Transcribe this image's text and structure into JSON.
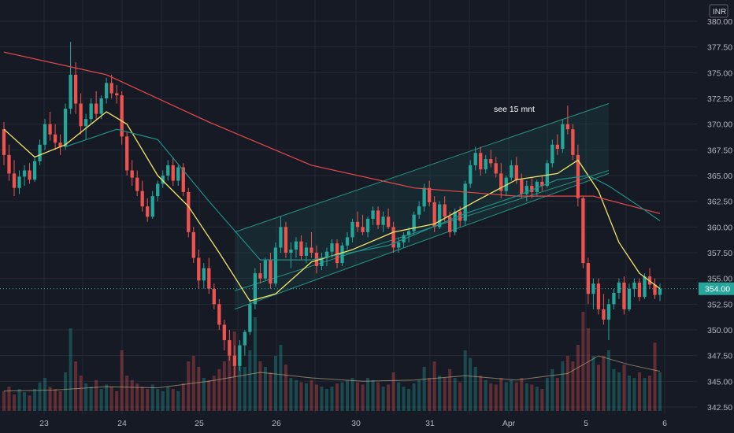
{
  "chart_data": {
    "type": "candlestick",
    "currency": "INR",
    "y_range": [
      342.5,
      380.0
    ],
    "y_ticks": [
      "380.00",
      "377.50",
      "375.00",
      "372.50",
      "370.00",
      "367.50",
      "365.00",
      "362.50",
      "360.00",
      "357.50",
      "355.00",
      "352.50",
      "350.00",
      "347.50",
      "345.00",
      "342.50"
    ],
    "x_ticks": [
      "23",
      "24",
      "25",
      "26",
      "30",
      "31",
      "Apr",
      "5",
      "6"
    ],
    "current_price": "354.00",
    "annotation": "see 15 mnt",
    "colors": {
      "background": "#161a25",
      "grid": "#242835",
      "up": "#26a69a",
      "down": "#ef5350",
      "ma_fast": "#f5e66b",
      "ma_slow": "#e84a4a",
      "ma_mid": "#1f8f87",
      "channel": "#2aa592",
      "price_line": "#26a69a"
    },
    "candles": [
      [
        369.5,
        370.2,
        366.0,
        367.0
      ],
      [
        367.0,
        368.0,
        364.5,
        365.2
      ],
      [
        365.2,
        366.5,
        363.0,
        363.8
      ],
      [
        363.8,
        365.5,
        363.2,
        364.9
      ],
      [
        364.9,
        366.0,
        364.0,
        365.5
      ],
      [
        365.5,
        366.2,
        364.2,
        364.6
      ],
      [
        364.6,
        366.8,
        364.4,
        366.4
      ],
      [
        366.4,
        368.5,
        366.0,
        368.0
      ],
      [
        368.0,
        370.5,
        367.5,
        370.0
      ],
      [
        370.0,
        371.2,
        368.4,
        369.0
      ],
      [
        369.0,
        370.0,
        367.5,
        368.2
      ],
      [
        368.2,
        369.0,
        367.0,
        367.8
      ],
      [
        367.8,
        372.0,
        367.5,
        371.5
      ],
      [
        371.5,
        378.0,
        371.0,
        374.8
      ],
      [
        374.8,
        376.0,
        371.0,
        372.0
      ],
      [
        372.0,
        373.0,
        369.0,
        369.8
      ],
      [
        369.8,
        371.0,
        368.5,
        370.5
      ],
      [
        370.5,
        372.5,
        370.0,
        372.0
      ],
      [
        372.0,
        373.2,
        370.5,
        371.0
      ],
      [
        371.0,
        372.8,
        370.5,
        372.5
      ],
      [
        372.5,
        374.5,
        372.0,
        374.0
      ],
      [
        374.0,
        374.8,
        372.5,
        373.0
      ],
      [
        373.0,
        373.8,
        372.0,
        372.8
      ],
      [
        372.8,
        373.2,
        368.0,
        368.8
      ],
      [
        368.8,
        369.2,
        365.0,
        365.5
      ],
      [
        365.5,
        366.5,
        364.0,
        364.8
      ],
      [
        364.8,
        365.5,
        363.0,
        363.5
      ],
      [
        363.5,
        364.5,
        361.5,
        362.0
      ],
      [
        362.0,
        362.8,
        360.5,
        361.0
      ],
      [
        361.0,
        363.5,
        360.8,
        363.0
      ],
      [
        363.0,
        364.5,
        362.5,
        364.2
      ],
      [
        364.2,
        365.5,
        363.8,
        365.0
      ],
      [
        365.0,
        366.5,
        364.5,
        366.0
      ],
      [
        366.0,
        366.8,
        364.0,
        364.5
      ],
      [
        364.5,
        366.0,
        364.0,
        365.8
      ],
      [
        365.8,
        366.2,
        363.0,
        363.4
      ],
      [
        363.4,
        363.8,
        359.0,
        359.5
      ],
      [
        359.5,
        360.0,
        356.5,
        357.0
      ],
      [
        357.0,
        357.8,
        354.0,
        354.8
      ],
      [
        354.8,
        356.5,
        354.0,
        356.0
      ],
      [
        356.0,
        357.0,
        353.5,
        354.0
      ],
      [
        354.0,
        354.5,
        352.0,
        352.5
      ],
      [
        352.5,
        353.0,
        350.0,
        350.5
      ],
      [
        350.5,
        351.0,
        348.0,
        349.0
      ],
      [
        349.0,
        350.0,
        347.0,
        347.5
      ],
      [
        347.5,
        348.5,
        345.5,
        346.5
      ],
      [
        346.5,
        349.0,
        346.0,
        348.5
      ],
      [
        348.5,
        350.0,
        347.5,
        349.8
      ],
      [
        349.8,
        353.0,
        349.5,
        352.5
      ],
      [
        352.5,
        356.0,
        352.0,
        355.5
      ],
      [
        355.5,
        356.5,
        354.5,
        355.0
      ],
      [
        355.0,
        357.0,
        354.8,
        356.8
      ],
      [
        356.8,
        357.5,
        354.0,
        354.5
      ],
      [
        354.5,
        358.5,
        354.2,
        358.0
      ],
      [
        358.0,
        361.0,
        357.5,
        360.0
      ],
      [
        360.0,
        360.5,
        357.0,
        357.5
      ],
      [
        357.5,
        358.5,
        356.0,
        357.8
      ],
      [
        357.8,
        359.0,
        357.0,
        358.6
      ],
      [
        358.6,
        359.2,
        356.8,
        357.2
      ],
      [
        357.2,
        358.5,
        356.5,
        358.0
      ],
      [
        358.0,
        359.5,
        357.0,
        357.5
      ],
      [
        357.5,
        358.2,
        355.5,
        356.2
      ],
      [
        356.2,
        357.5,
        355.8,
        357.0
      ],
      [
        357.0,
        358.0,
        356.2,
        357.6
      ],
      [
        357.6,
        358.8,
        357.0,
        358.4
      ],
      [
        358.4,
        358.8,
        356.0,
        356.5
      ],
      [
        356.5,
        358.5,
        356.2,
        358.2
      ],
      [
        358.2,
        359.5,
        357.8,
        359.0
      ],
      [
        359.0,
        360.8,
        358.5,
        360.5
      ],
      [
        360.5,
        361.5,
        359.5,
        360.0
      ],
      [
        360.0,
        361.2,
        359.2,
        359.5
      ],
      [
        359.5,
        361.0,
        359.0,
        360.8
      ],
      [
        360.8,
        362.0,
        360.2,
        361.6
      ],
      [
        361.6,
        362.0,
        359.8,
        360.2
      ],
      [
        360.2,
        361.5,
        359.5,
        361.0
      ],
      [
        361.0,
        361.8,
        359.8,
        360.0
      ],
      [
        360.0,
        360.5,
        357.5,
        358.0
      ],
      [
        358.0,
        359.0,
        357.5,
        358.5
      ],
      [
        358.5,
        359.5,
        358.0,
        359.2
      ],
      [
        359.2,
        360.0,
        358.5,
        359.6
      ],
      [
        359.6,
        361.5,
        359.2,
        361.2
      ],
      [
        361.2,
        362.5,
        360.8,
        362.0
      ],
      [
        362.0,
        364.2,
        361.5,
        363.8
      ],
      [
        363.8,
        364.5,
        362.0,
        362.4
      ],
      [
        362.4,
        363.0,
        359.5,
        360.0
      ],
      [
        360.0,
        362.5,
        359.8,
        362.2
      ],
      [
        362.2,
        363.0,
        360.5,
        361.0
      ],
      [
        361.0,
        361.5,
        359.0,
        359.5
      ],
      [
        359.5,
        361.8,
        359.2,
        361.5
      ],
      [
        361.5,
        362.0,
        360.0,
        360.6
      ],
      [
        360.6,
        364.5,
        360.2,
        364.2
      ],
      [
        364.2,
        366.5,
        363.8,
        366.0
      ],
      [
        366.0,
        367.8,
        365.5,
        367.2
      ],
      [
        367.2,
        367.8,
        365.0,
        365.6
      ],
      [
        365.6,
        367.0,
        365.2,
        366.6
      ],
      [
        366.6,
        367.5,
        365.8,
        366.2
      ],
      [
        366.2,
        366.8,
        364.8,
        365.2
      ],
      [
        365.2,
        366.2,
        362.8,
        363.5
      ],
      [
        363.5,
        365.0,
        363.0,
        364.8
      ],
      [
        364.8,
        366.5,
        364.5,
        366.0
      ],
      [
        366.0,
        366.8,
        364.2,
        364.6
      ],
      [
        364.6,
        365.2,
        362.8,
        363.2
      ],
      [
        363.2,
        364.5,
        362.5,
        364.0
      ],
      [
        364.0,
        364.8,
        362.8,
        363.4
      ],
      [
        363.4,
        364.6,
        363.0,
        364.4
      ],
      [
        364.4,
        365.0,
        363.5,
        364.0
      ],
      [
        364.0,
        366.5,
        363.8,
        366.2
      ],
      [
        366.2,
        368.5,
        365.8,
        368.0
      ],
      [
        368.0,
        369.0,
        367.0,
        367.6
      ],
      [
        367.6,
        370.5,
        367.2,
        370.0
      ],
      [
        370.0,
        371.8,
        369.0,
        369.5
      ],
      [
        369.5,
        370.0,
        366.5,
        367.0
      ],
      [
        367.0,
        368.0,
        362.0,
        362.8
      ],
      [
        362.8,
        363.0,
        356.0,
        356.5
      ],
      [
        356.5,
        357.0,
        352.5,
        353.5
      ],
      [
        353.5,
        355.0,
        352.0,
        354.5
      ],
      [
        354.5,
        355.0,
        351.5,
        352.0
      ],
      [
        352.0,
        353.5,
        350.5,
        351.0
      ],
      [
        351.0,
        353.0,
        349.0,
        352.5
      ],
      [
        352.5,
        354.0,
        352.0,
        353.6
      ],
      [
        353.6,
        355.0,
        353.0,
        354.6
      ],
      [
        354.6,
        355.2,
        351.5,
        352.0
      ],
      [
        352.0,
        354.5,
        351.8,
        354.0
      ],
      [
        354.0,
        355.0,
        353.2,
        354.6
      ],
      [
        354.6,
        355.0,
        352.8,
        353.2
      ],
      [
        353.2,
        355.5,
        353.0,
        355.2
      ],
      [
        355.2,
        356.0,
        354.0,
        354.4
      ],
      [
        354.4,
        355.0,
        353.0,
        353.4
      ],
      [
        353.4,
        354.5,
        352.8,
        354.0
      ]
    ],
    "moving_averages": [
      {
        "name": "",
        "color": "#f5e66b",
        "points": [
          [
            0,
            369.5
          ],
          [
            6,
            366.8
          ],
          [
            12,
            368.0
          ],
          [
            20,
            371.2
          ],
          [
            24,
            370.0
          ],
          [
            30,
            365.0
          ],
          [
            36,
            362.0
          ],
          [
            42,
            357.5
          ],
          [
            48,
            352.8
          ],
          [
            53,
            353.5
          ],
          [
            60,
            356.6
          ],
          [
            68,
            357.8
          ],
          [
            76,
            359.5
          ],
          [
            84,
            360.3
          ],
          [
            92,
            362.5
          ],
          [
            100,
            364.6
          ],
          [
            108,
            365.2
          ],
          [
            112,
            366.5
          ],
          [
            116,
            363.5
          ],
          [
            120,
            358.5
          ],
          [
            124,
            355.5
          ],
          [
            128,
            354.0
          ]
        ]
      },
      {
        "name": "",
        "color": "#e84a4a",
        "points": [
          [
            0,
            377.0
          ],
          [
            20,
            374.8
          ],
          [
            40,
            370.2
          ],
          [
            60,
            366.0
          ],
          [
            80,
            363.8
          ],
          [
            100,
            363.0
          ],
          [
            115,
            363.0
          ],
          [
            128,
            361.3
          ]
        ]
      },
      {
        "name": "",
        "color": "#1f8f87",
        "points": [
          [
            12,
            367.8
          ],
          [
            22,
            369.5
          ],
          [
            30,
            368.5
          ],
          [
            40,
            362.5
          ],
          [
            50,
            356.8
          ],
          [
            60,
            356.8
          ],
          [
            75,
            358.2
          ],
          [
            90,
            361.3
          ],
          [
            100,
            363.0
          ],
          [
            108,
            364.6
          ],
          [
            114,
            365.0
          ],
          [
            118,
            364.0
          ],
          [
            124,
            362.0
          ],
          [
            128,
            360.6
          ]
        ]
      }
    ],
    "volume": [
      0.18,
      0.22,
      0.15,
      0.2,
      0.17,
      0.14,
      0.2,
      0.26,
      0.3,
      0.22,
      0.2,
      0.18,
      0.35,
      0.75,
      0.45,
      0.32,
      0.25,
      0.22,
      0.28,
      0.2,
      0.24,
      0.22,
      0.18,
      0.55,
      0.32,
      0.28,
      0.25,
      0.22,
      0.2,
      0.24,
      0.2,
      0.18,
      0.22,
      0.2,
      0.18,
      0.25,
      0.45,
      0.5,
      0.4,
      0.3,
      0.28,
      0.32,
      0.38,
      0.45,
      0.55,
      0.72,
      0.5,
      0.4,
      0.55,
      0.85,
      0.45,
      0.4,
      0.35,
      0.5,
      0.6,
      0.42,
      0.3,
      0.28,
      0.26,
      0.25,
      0.28,
      0.24,
      0.22,
      0.2,
      0.22,
      0.25,
      0.26,
      0.28,
      0.3,
      0.26,
      0.24,
      0.3,
      0.28,
      0.26,
      0.22,
      0.24,
      0.35,
      0.26,
      0.22,
      0.2,
      0.25,
      0.28,
      0.4,
      0.3,
      0.45,
      0.32,
      0.3,
      0.38,
      0.3,
      0.26,
      0.55,
      0.48,
      0.4,
      0.32,
      0.28,
      0.25,
      0.24,
      0.3,
      0.26,
      0.28,
      0.26,
      0.3,
      0.25,
      0.24,
      0.22,
      0.2,
      0.3,
      0.38,
      0.3,
      0.45,
      0.5,
      0.45,
      0.6,
      0.9,
      0.75,
      0.5,
      0.42,
      0.5,
      0.55,
      0.38,
      0.35,
      0.42,
      0.32,
      0.3,
      0.35,
      0.3,
      0.32,
      0.62,
      0.35
    ],
    "volume_average": [
      [
        0,
        0.18
      ],
      [
        10,
        0.19
      ],
      [
        20,
        0.22
      ],
      [
        30,
        0.21
      ],
      [
        40,
        0.27
      ],
      [
        50,
        0.35
      ],
      [
        60,
        0.3
      ],
      [
        70,
        0.27
      ],
      [
        80,
        0.28
      ],
      [
        90,
        0.32
      ],
      [
        100,
        0.28
      ],
      [
        110,
        0.34
      ],
      [
        116,
        0.5
      ],
      [
        122,
        0.42
      ],
      [
        128,
        0.36
      ]
    ],
    "channel": {
      "upper": [
        [
          45,
          359.5
        ],
        [
          118,
          372.0
        ]
      ],
      "mid": [
        [
          45,
          353.8
        ],
        [
          118,
          365.5
        ]
      ],
      "lower": [
        [
          45,
          352.0
        ],
        [
          118,
          365.2
        ]
      ]
    }
  }
}
